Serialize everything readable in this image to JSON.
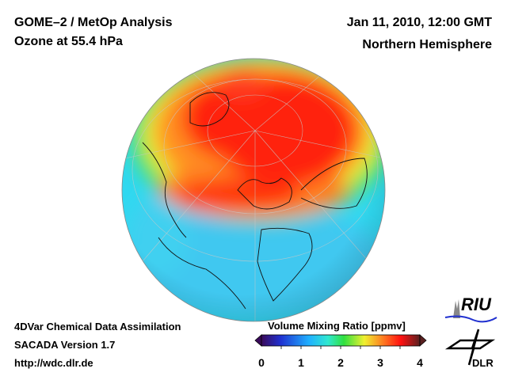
{
  "header": {
    "title": "GOME–2 / MetOp Analysis",
    "subtitle": "Ozone at 55.4 hPa",
    "datetime": "Jan 11, 2010, 12:00 GMT",
    "region": "Northern Hemisphere"
  },
  "footer": {
    "line1": "4DVar Chemical Data Assimilation",
    "line2": "SACADA Version 1.7",
    "url": "http://wdc.dlr.de"
  },
  "colorbar": {
    "title": "Volume Mixing Ratio [ppmv]",
    "ticks": [
      "0",
      "1",
      "2",
      "3",
      "4"
    ],
    "range": [
      0,
      4
    ],
    "colors": [
      "#3a0a5a",
      "#2030e0",
      "#20a0ff",
      "#30e0e0",
      "#30e040",
      "#f0f030",
      "#ff9020",
      "#ff1010",
      "#5a2020"
    ]
  },
  "logos": {
    "riu": "RIU",
    "dlr": "DLR"
  }
}
